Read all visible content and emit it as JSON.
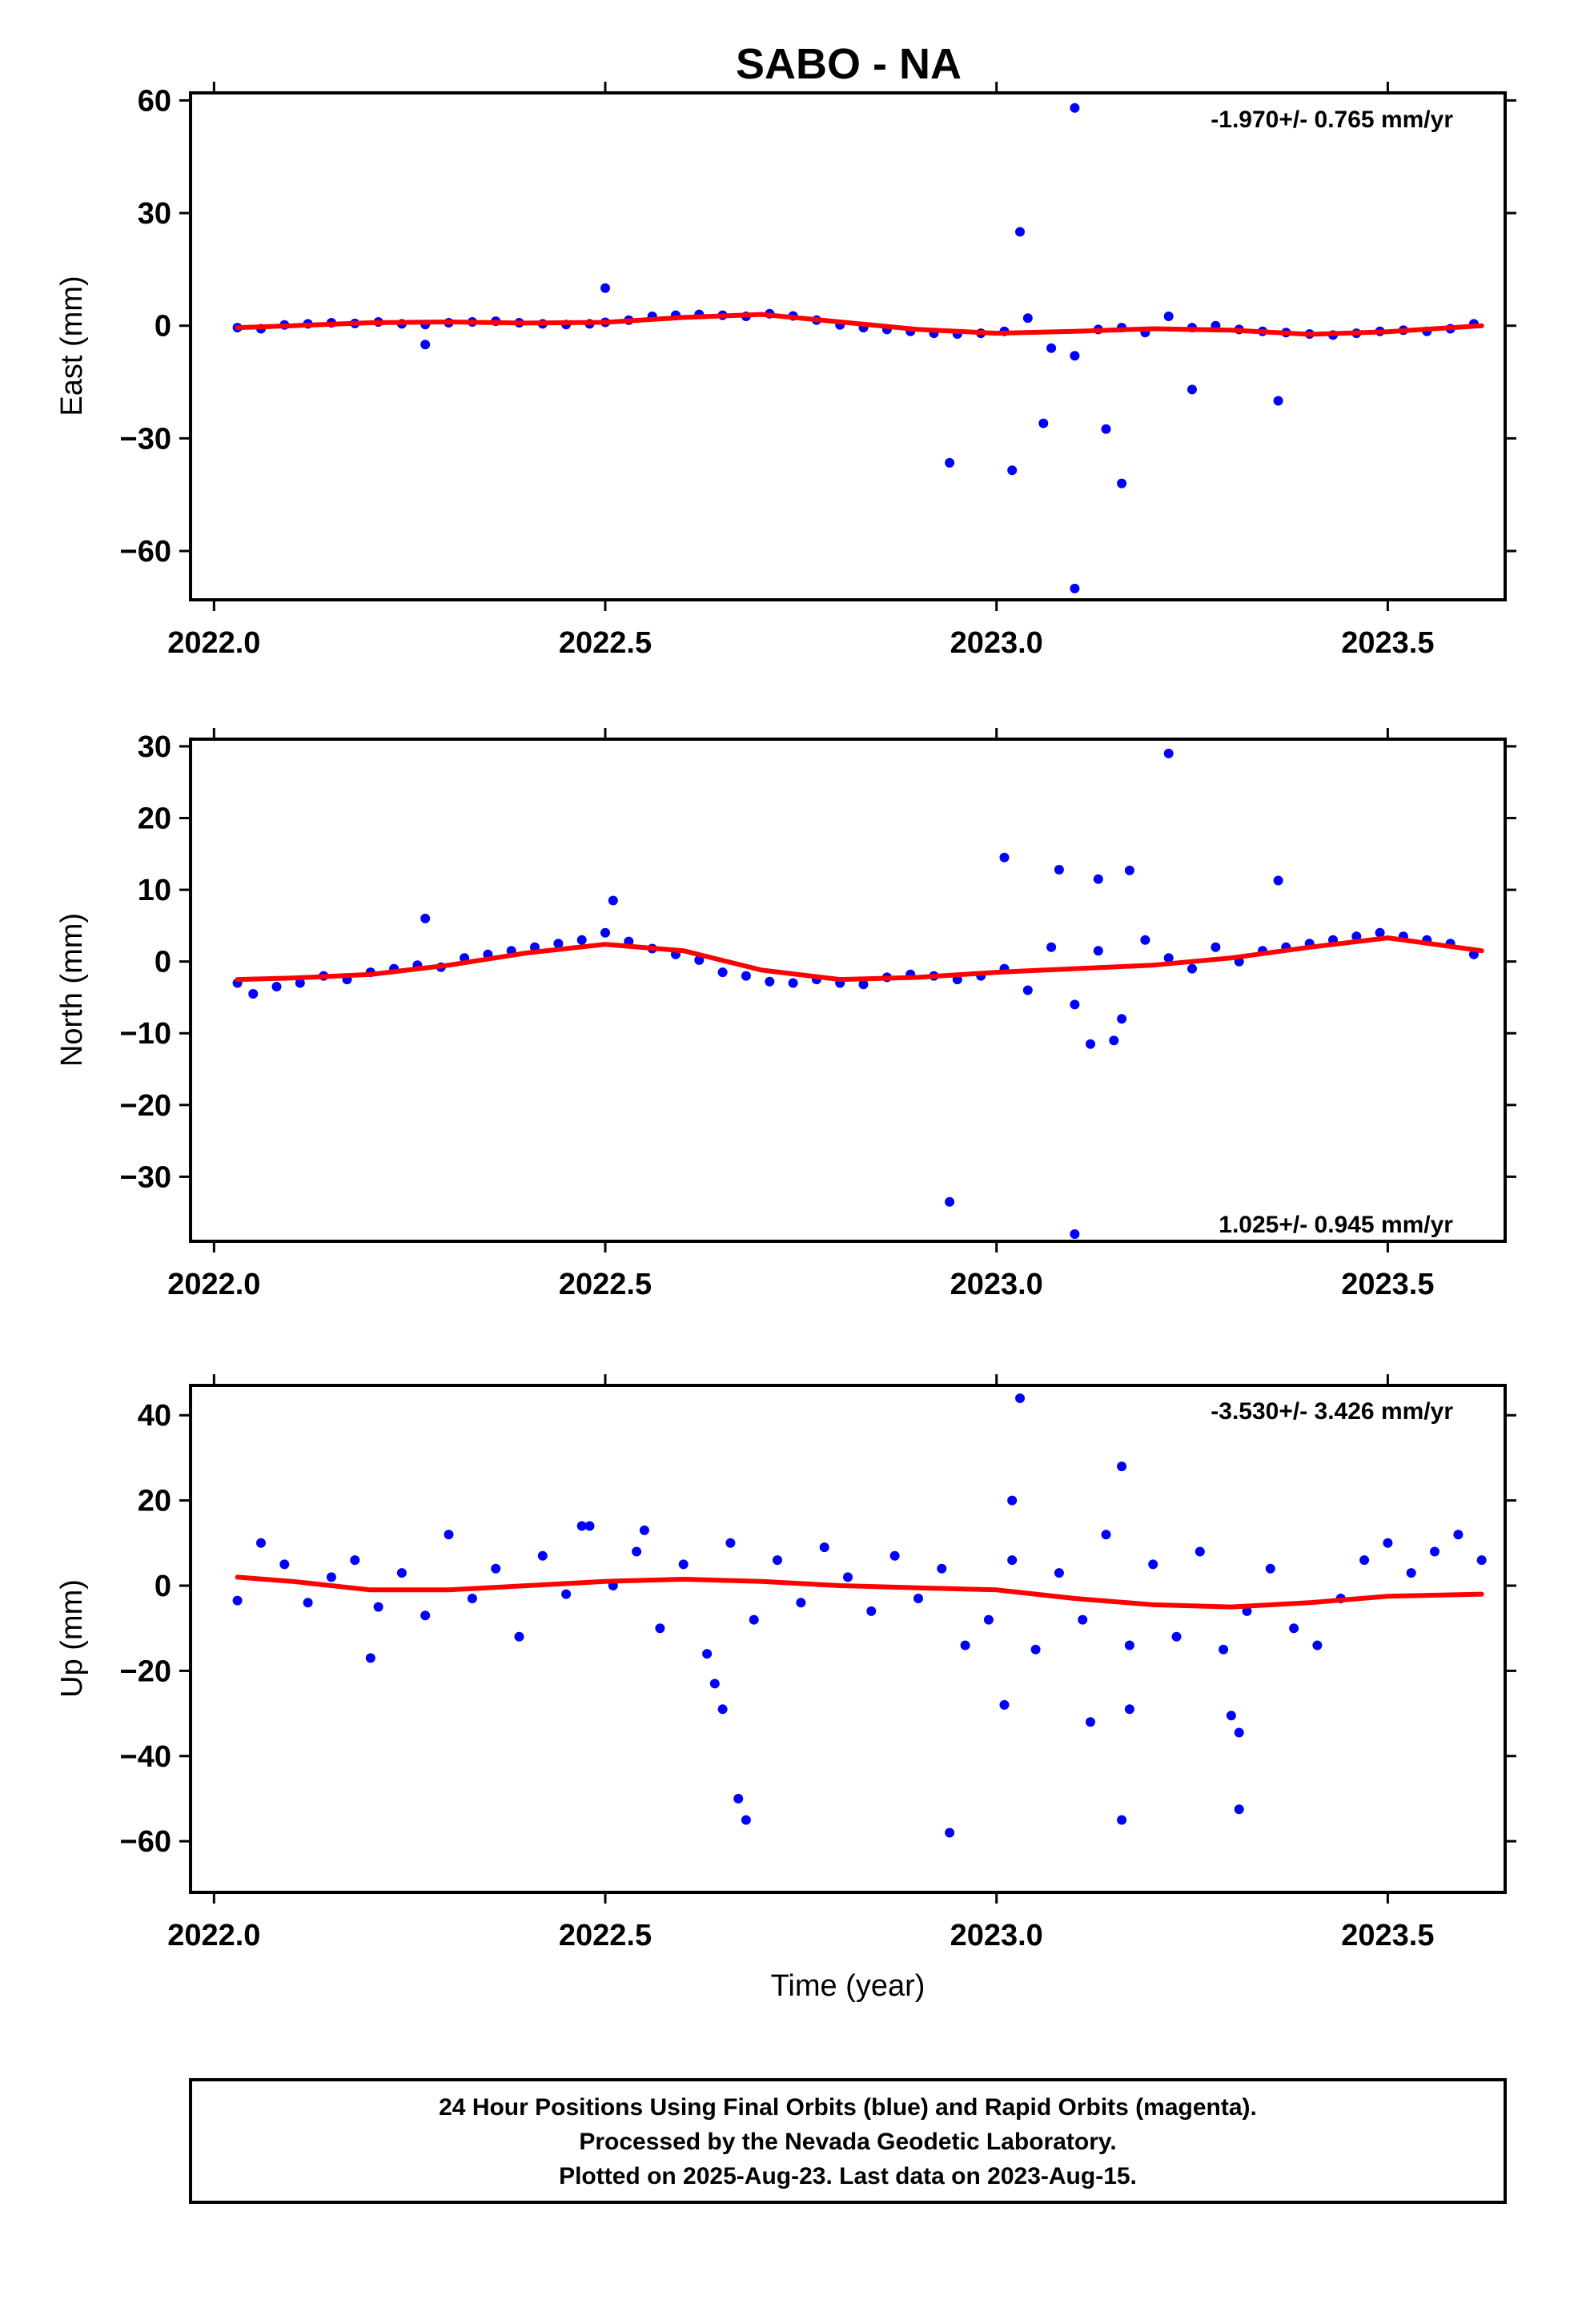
{
  "title": "SABO - NA",
  "xlabel": "Time (year)",
  "footer": {
    "line1": "24 Hour Positions Using Final Orbits (blue) and Rapid Orbits (magenta).",
    "line2": "Processed by the Nevada Geodetic Laboratory.",
    "line3": "Plotted on 2025-Aug-23. Last data on 2023-Aug-15."
  },
  "colors": {
    "final_orbits": "#0000ff",
    "model": "#ff0000",
    "frame": "#000000"
  },
  "chart_data": [
    {
      "type": "scatter",
      "title": "SABO - NA",
      "ylabel": "East (mm)",
      "xlabel": "",
      "xlim": [
        2021.97,
        2023.65
      ],
      "ylim": [
        -73,
        62
      ],
      "xticks": [
        2022.0,
        2022.5,
        2023.0,
        2023.5
      ],
      "xtick_labels": [
        "2022.0",
        "2022.5",
        "2023.0",
        "2023.5"
      ],
      "yticks": [
        60,
        30,
        0,
        -30,
        -60
      ],
      "ytick_labels": [
        "60",
        "30",
        "0",
        "−30",
        "−60"
      ],
      "rate_text": "-1.970+/- 0.765 mm/yr",
      "rate_position": "top-right",
      "grid": false,
      "series": [
        {
          "name": "Final Orbits",
          "x": [
            2022.03,
            2022.06,
            2022.09,
            2022.12,
            2022.15,
            2022.18,
            2022.21,
            2022.24,
            2022.27,
            2022.3,
            2022.33,
            2022.36,
            2022.39,
            2022.42,
            2022.45,
            2022.48,
            2022.5,
            2022.53,
            2022.56,
            2022.59,
            2022.62,
            2022.65,
            2022.68,
            2022.71,
            2022.74,
            2022.77,
            2022.8,
            2022.83,
            2022.86,
            2022.89,
            2022.92,
            2022.95,
            2022.98,
            2023.01,
            2023.04,
            2023.07,
            2023.1,
            2023.13,
            2023.16,
            2023.19,
            2023.22,
            2023.25,
            2023.28,
            2023.31,
            2023.34,
            2023.37,
            2023.4,
            2023.43,
            2023.46,
            2023.49,
            2023.52,
            2023.55,
            2023.58,
            2023.61,
            2022.27,
            2022.5,
            2022.94,
            2023.02,
            2023.06,
            2023.1,
            2023.14,
            2023.16,
            2023.1,
            2023.03,
            2023.25,
            2023.36
          ],
          "y": [
            -0.5,
            -0.8,
            0.2,
            0.5,
            0.8,
            0.6,
            1.0,
            0.5,
            0.3,
            0.8,
            1.0,
            1.2,
            0.8,
            0.5,
            0.3,
            0.5,
            0.9,
            1.5,
            2.5,
            2.8,
            3.0,
            2.8,
            2.5,
            3.2,
            2.6,
            1.5,
            0.2,
            -0.5,
            -1.0,
            -1.5,
            -2.0,
            -2.2,
            -2.0,
            -1.5,
            2.0,
            -6.0,
            -8.0,
            -1.0,
            -0.5,
            -1.8,
            2.5,
            -0.5,
            0.0,
            -1.0,
            -1.5,
            -1.8,
            -2.2,
            -2.5,
            -2.0,
            -1.5,
            -1.2,
            -1.5,
            -0.8,
            0.5,
            -5.0,
            10.0,
            -36.5,
            -38.5,
            -26.0,
            58.0,
            -27.5,
            -42.0,
            -70.0,
            25.0,
            -17.0,
            -20.0
          ]
        }
      ],
      "model": {
        "name": "Model fit",
        "x": [
          2022.03,
          2022.1,
          2022.2,
          2022.3,
          2022.4,
          2022.5,
          2022.6,
          2022.7,
          2022.8,
          2022.9,
          2023.0,
          2023.1,
          2023.2,
          2023.3,
          2023.4,
          2023.5,
          2023.62
        ],
        "y": [
          -0.5,
          0.0,
          0.8,
          1.0,
          0.7,
          0.9,
          2.2,
          3.0,
          1.0,
          -1.0,
          -2.0,
          -1.5,
          -0.8,
          -1.2,
          -2.3,
          -1.6,
          0.0
        ]
      }
    },
    {
      "type": "scatter",
      "ylabel": "North (mm)",
      "xlabel": "",
      "xlim": [
        2021.97,
        2023.65
      ],
      "ylim": [
        -39,
        31
      ],
      "xticks": [
        2022.0,
        2022.5,
        2023.0,
        2023.5
      ],
      "xtick_labels": [
        "2022.0",
        "2022.5",
        "2023.0",
        "2023.5"
      ],
      "yticks": [
        30,
        20,
        10,
        0,
        -10,
        -20,
        -30
      ],
      "ytick_labels": [
        "30",
        "20",
        "10",
        "0",
        "−10",
        "−20",
        "−30"
      ],
      "rate_text": "1.025+/- 0.945 mm/yr",
      "rate_position": "bottom-right",
      "grid": false,
      "series": [
        {
          "name": "Final Orbits",
          "x": [
            2022.03,
            2022.05,
            2022.08,
            2022.11,
            2022.14,
            2022.17,
            2022.2,
            2022.23,
            2022.26,
            2022.29,
            2022.32,
            2022.35,
            2022.38,
            2022.41,
            2022.44,
            2022.47,
            2022.5,
            2022.53,
            2022.56,
            2022.59,
            2022.62,
            2022.65,
            2022.68,
            2022.71,
            2022.74,
            2022.77,
            2022.8,
            2022.83,
            2022.86,
            2022.89,
            2022.92,
            2022.95,
            2022.98,
            2023.01,
            2023.04,
            2023.07,
            2023.1,
            2023.13,
            2023.16,
            2023.19,
            2023.22,
            2023.25,
            2023.28,
            2023.31,
            2023.34,
            2023.37,
            2023.4,
            2023.43,
            2023.46,
            2023.49,
            2023.52,
            2023.55,
            2023.58,
            2023.61,
            2022.27,
            2022.51,
            2023.01,
            2023.08,
            2023.13,
            2023.17,
            2023.12,
            2023.15,
            2023.36,
            2022.94,
            2023.1,
            2023.22
          ],
          "y": [
            -3.0,
            -4.5,
            -3.5,
            -3.0,
            -2.0,
            -2.5,
            -1.5,
            -1.0,
            -0.5,
            -0.8,
            0.5,
            1.0,
            1.5,
            2.0,
            2.5,
            3.0,
            4.0,
            2.8,
            1.8,
            1.0,
            0.2,
            -1.5,
            -2.0,
            -2.8,
            -3.0,
            -2.5,
            -3.0,
            -3.2,
            -2.2,
            -1.8,
            -2.0,
            -2.5,
            -2.0,
            -1.0,
            -4.0,
            2.0,
            -6.0,
            1.5,
            -8.0,
            3.0,
            0.5,
            -1.0,
            2.0,
            0.0,
            1.5,
            2.0,
            2.5,
            3.0,
            3.5,
            4.0,
            3.5,
            3.0,
            2.5,
            1.0,
            6.0,
            8.5,
            14.5,
            12.8,
            11.5,
            12.7,
            -11.5,
            -11.0,
            11.3,
            -33.5,
            -38.0,
            29.0
          ]
        }
      ],
      "model": {
        "name": "Model fit",
        "x": [
          2022.03,
          2022.1,
          2022.2,
          2022.3,
          2022.4,
          2022.5,
          2022.6,
          2022.7,
          2022.8,
          2022.9,
          2023.0,
          2023.1,
          2023.2,
          2023.3,
          2023.4,
          2023.5,
          2023.62
        ],
        "y": [
          -2.5,
          -2.3,
          -1.8,
          -0.5,
          1.2,
          2.4,
          1.5,
          -1.2,
          -2.5,
          -2.2,
          -1.5,
          -1.0,
          -0.5,
          0.5,
          2.0,
          3.3,
          1.5
        ]
      }
    },
    {
      "type": "scatter",
      "ylabel": "Up (mm)",
      "xlabel": "Time (year)",
      "xlim": [
        2021.97,
        2023.65
      ],
      "ylim": [
        -72,
        47
      ],
      "xticks": [
        2022.0,
        2022.5,
        2023.0,
        2023.5
      ],
      "xtick_labels": [
        "2022.0",
        "2022.5",
        "2023.0",
        "2023.5"
      ],
      "yticks": [
        40,
        20,
        0,
        -20,
        -40,
        -60
      ],
      "ytick_labels": [
        "40",
        "20",
        "0",
        "−20",
        "−40",
        "−60"
      ],
      "rate_text": "-3.530+/- 3.426 mm/yr",
      "rate_position": "top-right",
      "grid": false,
      "series": [
        {
          "name": "Final Orbits",
          "x": [
            2022.03,
            2022.06,
            2022.09,
            2022.12,
            2022.15,
            2022.18,
            2022.21,
            2022.24,
            2022.27,
            2022.3,
            2022.33,
            2022.36,
            2022.39,
            2022.42,
            2022.45,
            2022.48,
            2022.51,
            2022.54,
            2022.57,
            2022.6,
            2022.63,
            2022.66,
            2022.69,
            2022.72,
            2022.75,
            2022.78,
            2022.81,
            2022.84,
            2022.87,
            2022.9,
            2022.93,
            2022.96,
            2022.99,
            2023.02,
            2023.05,
            2023.08,
            2023.11,
            2023.14,
            2023.17,
            2023.2,
            2023.23,
            2023.26,
            2023.29,
            2023.32,
            2023.35,
            2023.38,
            2023.41,
            2023.44,
            2023.47,
            2023.5,
            2023.53,
            2023.56,
            2023.59,
            2023.62,
            2022.2,
            2022.64,
            2022.65,
            2022.67,
            2022.68,
            2022.94,
            2023.01,
            2023.02,
            2023.03,
            2023.12,
            2023.16,
            2023.16,
            2023.17,
            2023.3,
            2023.31,
            2023.31,
            2022.47,
            2022.55
          ],
          "y": [
            -3.5,
            10.0,
            5.0,
            -4.0,
            2.0,
            6.0,
            -5.0,
            3.0,
            -7.0,
            12.0,
            -3.0,
            4.0,
            -12.0,
            7.0,
            -2.0,
            14.0,
            0.0,
            8.0,
            -10.0,
            5.0,
            -16.0,
            10.0,
            -8.0,
            6.0,
            -4.0,
            9.0,
            2.0,
            -6.0,
            7.0,
            -3.0,
            4.0,
            -14.0,
            -8.0,
            6.0,
            -15.0,
            3.0,
            -8.0,
            12.0,
            -14.0,
            5.0,
            -12.0,
            8.0,
            -15.0,
            -6.0,
            4.0,
            -10.0,
            -14.0,
            -3.0,
            6.0,
            10.0,
            3.0,
            8.0,
            12.0,
            6.0,
            -17.0,
            -23.0,
            -29.0,
            -50.0,
            -55.0,
            -58.0,
            -28.0,
            20.0,
            44.0,
            -32.0,
            28.0,
            -55.0,
            -29.0,
            -30.5,
            -34.5,
            -52.5,
            14.0,
            13.0
          ]
        }
      ],
      "model": {
        "name": "Model fit",
        "x": [
          2022.03,
          2022.1,
          2022.2,
          2022.3,
          2022.4,
          2022.5,
          2022.6,
          2022.7,
          2022.8,
          2022.9,
          2023.0,
          2023.1,
          2023.2,
          2023.3,
          2023.4,
          2023.5,
          2023.62
        ],
        "y": [
          2.0,
          1.0,
          -1.0,
          -1.0,
          0.0,
          1.0,
          1.5,
          1.0,
          0.0,
          -0.5,
          -1.0,
          -3.0,
          -4.5,
          -5.0,
          -4.0,
          -2.5,
          -2.0
        ]
      }
    }
  ]
}
